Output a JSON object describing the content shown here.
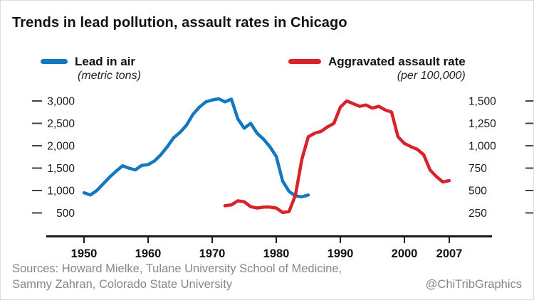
{
  "title": "Trends in lead pollution, assault rates in Chicago",
  "legend": {
    "lead": {
      "label": "Lead in air",
      "sublabel": "(metric tons)",
      "color": "#1478bf"
    },
    "assault": {
      "label": "Aggravated assault rate",
      "sublabel": "(per 100,000)",
      "color": "#d8232b"
    }
  },
  "footer": {
    "sources_line1": "Sources: Howard Mielke, Tulane University School of Medicine,",
    "sources_line2": "Sammy Zahran, Colorado State University",
    "credit": "@ChiTribGraphics"
  },
  "chart_data": {
    "type": "line",
    "title": "Trends in lead pollution, assault rates in Chicago",
    "xlabel": "",
    "ylabel_left": "Lead in air (metric tons)",
    "ylabel_right": "Aggravated assault rate (per 100,000)",
    "grid": false,
    "legend_position": "top",
    "x_axis": {
      "range": [
        1950,
        2007
      ],
      "ticks": [
        1950,
        1960,
        1970,
        1980,
        1990,
        2000,
        2007
      ],
      "labels": [
        "1950",
        "1960",
        "1970",
        "1980",
        "1990",
        "2000",
        "2007"
      ]
    },
    "y_axis_left": {
      "range": [
        0,
        3000
      ],
      "ticks": [
        500,
        1000,
        1500,
        2000,
        2500,
        3000
      ],
      "labels": [
        "500",
        "1,000",
        "1,500",
        "2,000",
        "2,500",
        "3,000"
      ]
    },
    "y_axis_right": {
      "range": [
        0,
        1500
      ],
      "ticks": [
        250,
        500,
        750,
        1000,
        1250,
        1500
      ],
      "labels": [
        "250",
        "500",
        "750",
        "1,000",
        "1,250",
        "1,500"
      ]
    },
    "series": [
      {
        "id": "lead-in-air",
        "name": "Lead in air (metric tons)",
        "axis": "left",
        "color": "#1478bf",
        "points": [
          [
            1950,
            950
          ],
          [
            1951,
            900
          ],
          [
            1952,
            1000
          ],
          [
            1953,
            1150
          ],
          [
            1954,
            1300
          ],
          [
            1955,
            1430
          ],
          [
            1956,
            1550
          ],
          [
            1957,
            1500
          ],
          [
            1958,
            1460
          ],
          [
            1959,
            1560
          ],
          [
            1960,
            1580
          ],
          [
            1961,
            1660
          ],
          [
            1962,
            1800
          ],
          [
            1963,
            1980
          ],
          [
            1964,
            2180
          ],
          [
            1965,
            2300
          ],
          [
            1966,
            2460
          ],
          [
            1967,
            2700
          ],
          [
            1968,
            2860
          ],
          [
            1969,
            2980
          ],
          [
            1970,
            3020
          ],
          [
            1971,
            3050
          ],
          [
            1972,
            2980
          ],
          [
            1973,
            3040
          ],
          [
            1974,
            2600
          ],
          [
            1975,
            2390
          ],
          [
            1976,
            2500
          ],
          [
            1977,
            2280
          ],
          [
            1978,
            2150
          ],
          [
            1979,
            1980
          ],
          [
            1980,
            1760
          ],
          [
            1981,
            1210
          ],
          [
            1982,
            980
          ],
          [
            1983,
            880
          ],
          [
            1984,
            860
          ],
          [
            1985,
            900
          ]
        ]
      },
      {
        "id": "aggravated-assault-rate",
        "name": "Aggravated assault rate (per 100,000)",
        "axis": "right",
        "color": "#d8232b",
        "points": [
          [
            1972,
            330
          ],
          [
            1973,
            340
          ],
          [
            1974,
            385
          ],
          [
            1975,
            375
          ],
          [
            1976,
            320
          ],
          [
            1977,
            305
          ],
          [
            1978,
            315
          ],
          [
            1979,
            315
          ],
          [
            1980,
            305
          ],
          [
            1981,
            255
          ],
          [
            1982,
            265
          ],
          [
            1983,
            450
          ],
          [
            1984,
            850
          ],
          [
            1985,
            1100
          ],
          [
            1986,
            1140
          ],
          [
            1987,
            1160
          ],
          [
            1988,
            1210
          ],
          [
            1989,
            1250
          ],
          [
            1990,
            1430
          ],
          [
            1991,
            1500
          ],
          [
            1992,
            1470
          ],
          [
            1993,
            1440
          ],
          [
            1994,
            1455
          ],
          [
            1995,
            1420
          ],
          [
            1996,
            1440
          ],
          [
            1997,
            1400
          ],
          [
            1998,
            1375
          ],
          [
            1999,
            1100
          ],
          [
            2000,
            1025
          ],
          [
            2001,
            990
          ],
          [
            2002,
            960
          ],
          [
            2003,
            900
          ],
          [
            2004,
            730
          ],
          [
            2005,
            655
          ],
          [
            2006,
            595
          ],
          [
            2007,
            610
          ]
        ]
      }
    ]
  }
}
